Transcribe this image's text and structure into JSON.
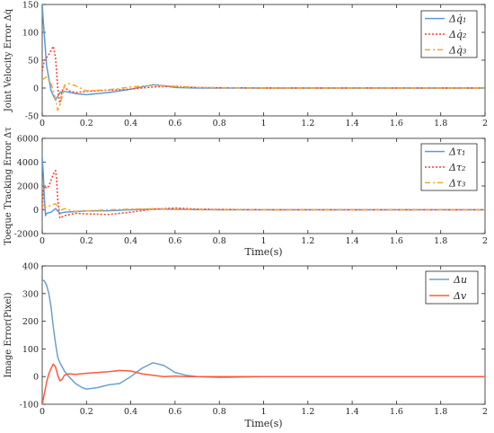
{
  "chart_data": [
    {
      "type": "line",
      "ylabel": "Joint  Velocity Error  Δq̇",
      "xlabel": "",
      "xlim": [
        0,
        2
      ],
      "ylim": [
        -50,
        150
      ],
      "xticks": [
        "0",
        "0.2",
        "0.4",
        "0.6",
        "0.8",
        "1",
        "1.2",
        "1.4",
        "1.6",
        "1.8",
        "2"
      ],
      "yticks": [
        "-50",
        "0",
        "50",
        "100",
        "150"
      ],
      "ytick_values": [
        -50,
        0,
        50,
        100,
        150
      ],
      "legend_position": "top-right",
      "series": [
        {
          "name": "Δq̇₁",
          "color": "#5b9bd5",
          "dash": "",
          "x": [
            0,
            0.005,
            0.02,
            0.04,
            0.06,
            0.08,
            0.1,
            0.15,
            0.2,
            0.3,
            0.4,
            0.5,
            0.55,
            0.6,
            0.7,
            0.8,
            1,
            2
          ],
          "y": [
            150,
            120,
            40,
            -5,
            -22,
            -8,
            -6,
            -10,
            -12,
            -8,
            -2,
            6,
            4,
            1,
            0,
            0,
            0,
            0
          ]
        },
        {
          "name": "Δq̇₂",
          "color": "#ff3b2f",
          "dash": "2,2",
          "x": [
            0,
            0.01,
            0.03,
            0.05,
            0.06,
            0.07,
            0.08,
            0.09,
            0.1,
            0.12,
            0.15,
            0.2,
            0.3,
            0.4,
            0.5,
            0.6,
            0.7,
            1,
            2
          ],
          "y": [
            30,
            50,
            60,
            75,
            55,
            0,
            -30,
            -5,
            2,
            -5,
            -8,
            -6,
            -4,
            -2,
            2,
            3,
            1,
            0,
            0
          ]
        },
        {
          "name": "Δq̇₃",
          "color": "#f5a623",
          "dash": "6,3,2,3",
          "x": [
            0,
            0.02,
            0.04,
            0.06,
            0.07,
            0.08,
            0.09,
            0.1,
            0.12,
            0.15,
            0.2,
            0.3,
            0.4,
            0.5,
            0.6,
            0.7,
            1,
            2
          ],
          "y": [
            15,
            20,
            8,
            -20,
            -40,
            -30,
            -15,
            5,
            8,
            4,
            -5,
            -3,
            2,
            5,
            3,
            1,
            0,
            0
          ]
        }
      ]
    },
    {
      "type": "line",
      "ylabel": "Toeque Tracking Error  Δτ",
      "xlabel": "Time(s)",
      "xlim": [
        0,
        2
      ],
      "ylim": [
        -2000,
        6000
      ],
      "xticks": [
        "0",
        "0.2",
        "0.4",
        "0.6",
        "0.8",
        "1",
        "1.2",
        "1.4",
        "1.6",
        "1.8",
        "2"
      ],
      "yticks": [
        "-2000",
        "0",
        "2000",
        "4000",
        "6000"
      ],
      "ytick_values": [
        -2000,
        0,
        2000,
        4000,
        6000
      ],
      "legend_position": "top-right",
      "series": [
        {
          "name": "Δτ₁",
          "color": "#5b9bd5",
          "dash": "",
          "x": [
            0,
            0.005,
            0.01,
            0.015,
            0.02,
            0.04,
            0.06,
            0.08,
            0.1,
            0.15,
            0.2,
            0.3,
            0.4,
            0.5,
            0.6,
            0.7,
            0.8,
            1,
            1.5,
            2
          ],
          "y": [
            4500,
            3000,
            800,
            -500,
            -300,
            -200,
            100,
            -300,
            -200,
            -150,
            -100,
            -80,
            0,
            60,
            40,
            20,
            0,
            0,
            0,
            0
          ]
        },
        {
          "name": "Δτ₂",
          "color": "#ff3b2f",
          "dash": "2,2",
          "x": [
            0,
            0.005,
            0.01,
            0.02,
            0.03,
            0.04,
            0.05,
            0.06,
            0.065,
            0.07,
            0.08,
            0.1,
            0.15,
            0.2,
            0.3,
            0.4,
            0.5,
            0.6,
            0.7,
            1,
            2
          ],
          "y": [
            0,
            1500,
            2000,
            1800,
            2000,
            2500,
            3000,
            3300,
            2600,
            800,
            -700,
            -500,
            -300,
            -350,
            -400,
            -200,
            50,
            150,
            50,
            0,
            0
          ]
        },
        {
          "name": "Δτ₃",
          "color": "#f5a623",
          "dash": "6,3,2,3",
          "x": [
            0,
            0.01,
            0.02,
            0.04,
            0.06,
            0.07,
            0.08,
            0.1,
            0.15,
            0.2,
            0.3,
            0.4,
            0.5,
            0.6,
            0.7,
            1,
            2
          ],
          "y": [
            500,
            300,
            200,
            400,
            500,
            300,
            -100,
            100,
            -150,
            -100,
            0,
            50,
            80,
            30,
            0,
            0,
            0
          ]
        }
      ]
    },
    {
      "type": "line",
      "ylabel": "Image Error(Pixel)",
      "xlabel": "Time(s)",
      "xlim": [
        0,
        2
      ],
      "ylim": [
        -100,
        400
      ],
      "xticks": [
        "0",
        "0.2",
        "0.4",
        "0.6",
        "0.8",
        "1",
        "1.2",
        "1.4",
        "1.6",
        "1.8",
        "2"
      ],
      "yticks": [
        "-100",
        "0",
        "100",
        "200",
        "300",
        "400"
      ],
      "ytick_values": [
        -100,
        0,
        100,
        200,
        300,
        400
      ],
      "legend_position": "top-right",
      "series": [
        {
          "name": "Δu",
          "color": "#6aa0d0",
          "dash": "",
          "x": [
            0,
            0.01,
            0.02,
            0.03,
            0.04,
            0.05,
            0.06,
            0.07,
            0.08,
            0.1,
            0.12,
            0.15,
            0.18,
            0.2,
            0.25,
            0.3,
            0.35,
            0.4,
            0.45,
            0.5,
            0.55,
            0.6,
            0.65,
            0.7,
            0.8,
            0.9,
            1,
            2
          ],
          "y": [
            350,
            345,
            330,
            300,
            250,
            180,
            120,
            70,
            50,
            20,
            0,
            -25,
            -40,
            -45,
            -40,
            -30,
            -25,
            0,
            30,
            50,
            40,
            15,
            5,
            0,
            -3,
            -2,
            0,
            0
          ]
        },
        {
          "name": "Δv",
          "color": "#ff5a3c",
          "dash": "",
          "x": [
            0,
            0.01,
            0.02,
            0.03,
            0.04,
            0.05,
            0.06,
            0.07,
            0.08,
            0.09,
            0.1,
            0.12,
            0.15,
            0.2,
            0.25,
            0.3,
            0.35,
            0.4,
            0.45,
            0.5,
            0.55,
            0.6,
            0.65,
            0.7,
            0.8,
            1,
            2
          ],
          "y": [
            -100,
            -60,
            -20,
            10,
            30,
            45,
            35,
            5,
            -15,
            -10,
            5,
            10,
            8,
            12,
            15,
            18,
            22,
            20,
            10,
            5,
            0,
            2,
            0,
            0,
            0,
            0,
            0
          ]
        }
      ]
    }
  ]
}
